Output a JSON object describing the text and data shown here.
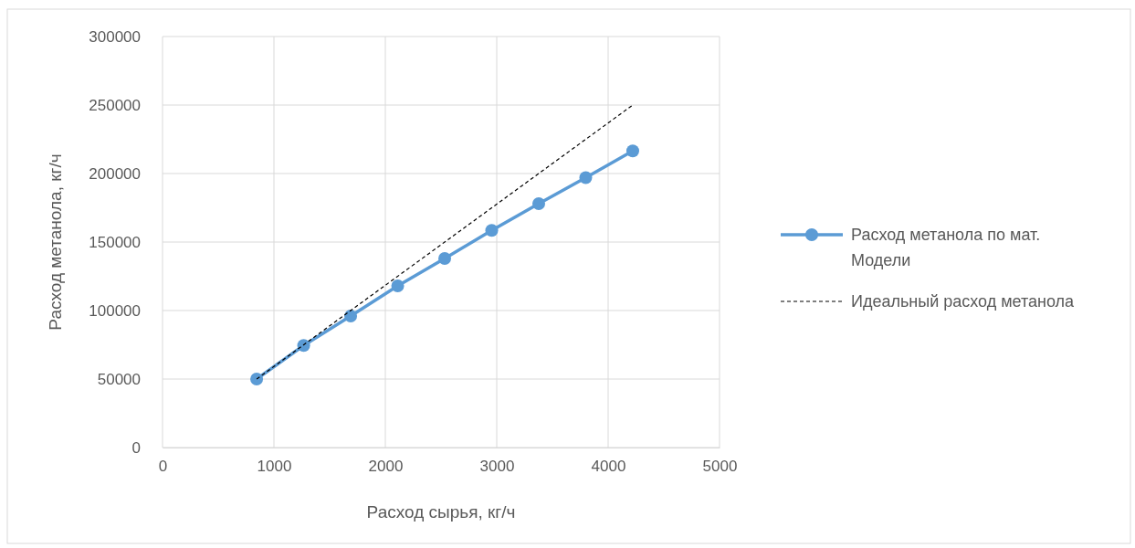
{
  "chart_data": {
    "type": "line",
    "xlabel": "Расход сырья, кг/ч",
    "ylabel": "Расход метанола, кг/ч",
    "xlim": [
      0,
      5000
    ],
    "xticks": [
      0,
      1000,
      2000,
      3000,
      4000,
      5000
    ],
    "ylim": [
      0,
      300000
    ],
    "yticks": [
      0,
      50000,
      100000,
      150000,
      200000,
      250000,
      300000
    ],
    "grid": true,
    "legend": "right",
    "series": [
      {
        "name": "Расход метанола по мат. Модели",
        "color": "#5b9bd5",
        "marker": "circle",
        "line_style": "solid",
        "x": [
          845,
          1267,
          1689,
          2111,
          2533,
          2955,
          3377,
          3799,
          4221
        ],
        "values": [
          50000,
          74500,
          96000,
          118000,
          138000,
          158500,
          178000,
          197000,
          216500
        ]
      },
      {
        "name": "Идеальный расход метанола",
        "color": "#000000",
        "marker": "none",
        "line_style": "dashed",
        "x": [
          845,
          4221
        ],
        "values": [
          50000,
          250000
        ]
      }
    ]
  }
}
